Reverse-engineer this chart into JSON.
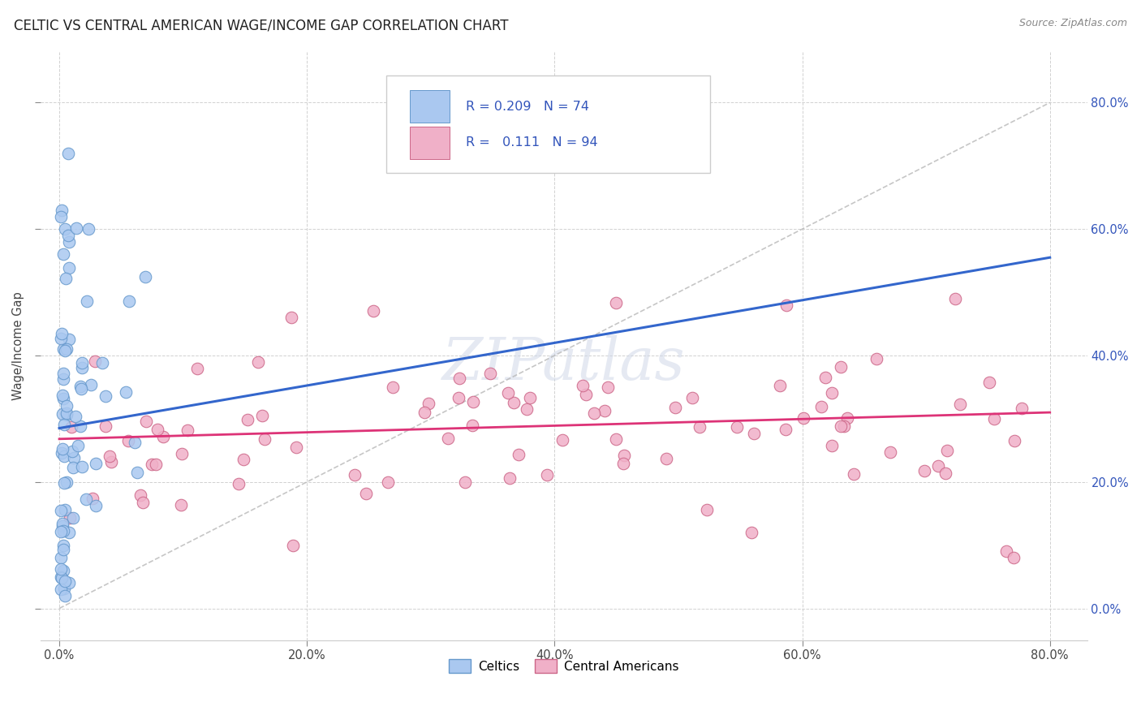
{
  "title": "CELTIC VS CENTRAL AMERICAN WAGE/INCOME GAP CORRELATION CHART",
  "source": "Source: ZipAtlas.com",
  "ylabel_label": "Wage/Income Gap",
  "x_tick_vals": [
    0.0,
    0.2,
    0.4,
    0.6,
    0.8
  ],
  "x_tick_labels": [
    "0.0%",
    "20.0%",
    "40.0%",
    "60.0%",
    "80.0%"
  ],
  "y_tick_vals": [
    0.0,
    0.2,
    0.4,
    0.6,
    0.8
  ],
  "y_tick_labels": [
    "0.0%",
    "20.0%",
    "40.0%",
    "60.0%",
    "80.0%"
  ],
  "xlim": [
    -0.015,
    0.83
  ],
  "ylim": [
    -0.05,
    0.88
  ],
  "celtics_color": "#aac8f0",
  "celtics_edge": "#6699cc",
  "central_color": "#f0b0c8",
  "central_edge": "#cc6688",
  "trend_celtics_color": "#3366cc",
  "trend_central_color": "#dd3377",
  "diagonal_color": "#b8b8b8",
  "legend_text_color": "#3355bb",
  "legend_r1_text": "R = 0.209   N = 74",
  "legend_r2_text": "R =   0.111   N = 94",
  "watermark": "ZIPatlas",
  "celtics_trend_x0": 0.0,
  "celtics_trend_x1": 0.8,
  "celtics_trend_y0": 0.285,
  "celtics_trend_y1": 0.555,
  "central_trend_x0": 0.0,
  "central_trend_x1": 0.8,
  "central_trend_y0": 0.268,
  "central_trend_y1": 0.31,
  "seed": 123
}
